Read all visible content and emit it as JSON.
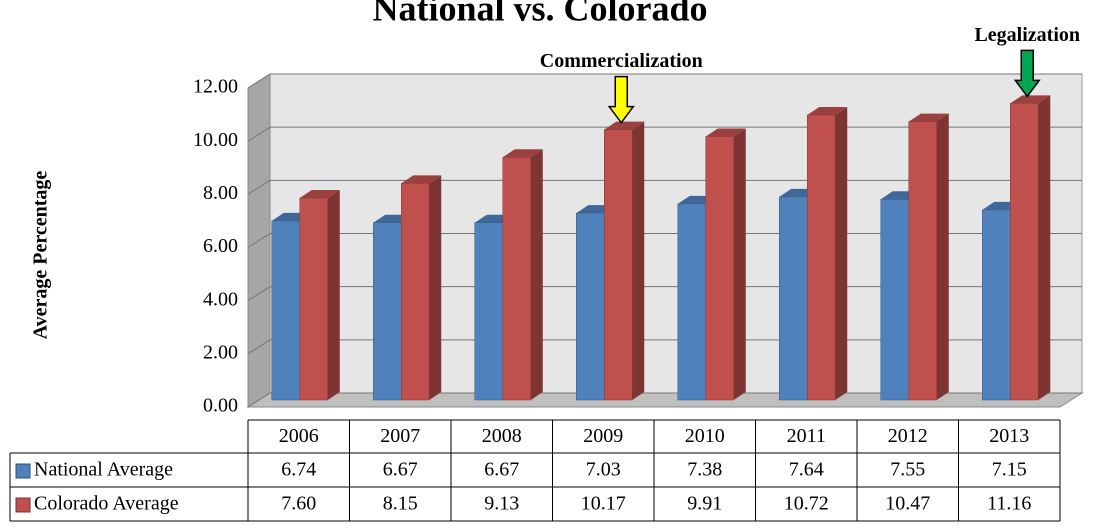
{
  "chart_data": {
    "type": "bar3d",
    "title": "National vs. Colorado",
    "y_label": "Average Percentage",
    "annotations": [
      {
        "text": "Commercialization",
        "category": 3,
        "color": "#ffff00"
      },
      {
        "text": "Legalization",
        "category": 7,
        "color": "#00a651"
      }
    ],
    "categories": [
      "2006",
      "2007",
      "2008",
      "2009",
      "2010",
      "2011",
      "2012",
      "2013"
    ],
    "series": [
      {
        "name": "National Average",
        "color": "#4f81bd",
        "values": [
          6.74,
          6.67,
          6.67,
          7.03,
          7.38,
          7.64,
          7.55,
          7.15
        ],
        "value_labels": [
          "6.74",
          "6.67",
          "6.67",
          "7.03",
          "7.38",
          "7.64",
          "7.55",
          "7.15"
        ]
      },
      {
        "name": "Colorado Average",
        "color": "#c0504d",
        "values": [
          7.6,
          8.15,
          9.13,
          10.17,
          9.91,
          10.72,
          10.47,
          11.16
        ],
        "value_labels": [
          "7.60",
          "8.15",
          "9.13",
          "10.17",
          "9.91",
          "10.72",
          "10.47",
          "11.16"
        ]
      }
    ],
    "ylim": [
      0,
      12
    ],
    "yticks": [
      {
        "value": 0,
        "label": "0.00"
      },
      {
        "value": 2,
        "label": "2.00"
      },
      {
        "value": 4,
        "label": "4.00"
      },
      {
        "value": 6,
        "label": "6.00"
      },
      {
        "value": 8,
        "label": "8.00"
      },
      {
        "value": 10,
        "label": "10.00"
      },
      {
        "value": 12,
        "label": "12.00"
      }
    ],
    "grid": true
  }
}
